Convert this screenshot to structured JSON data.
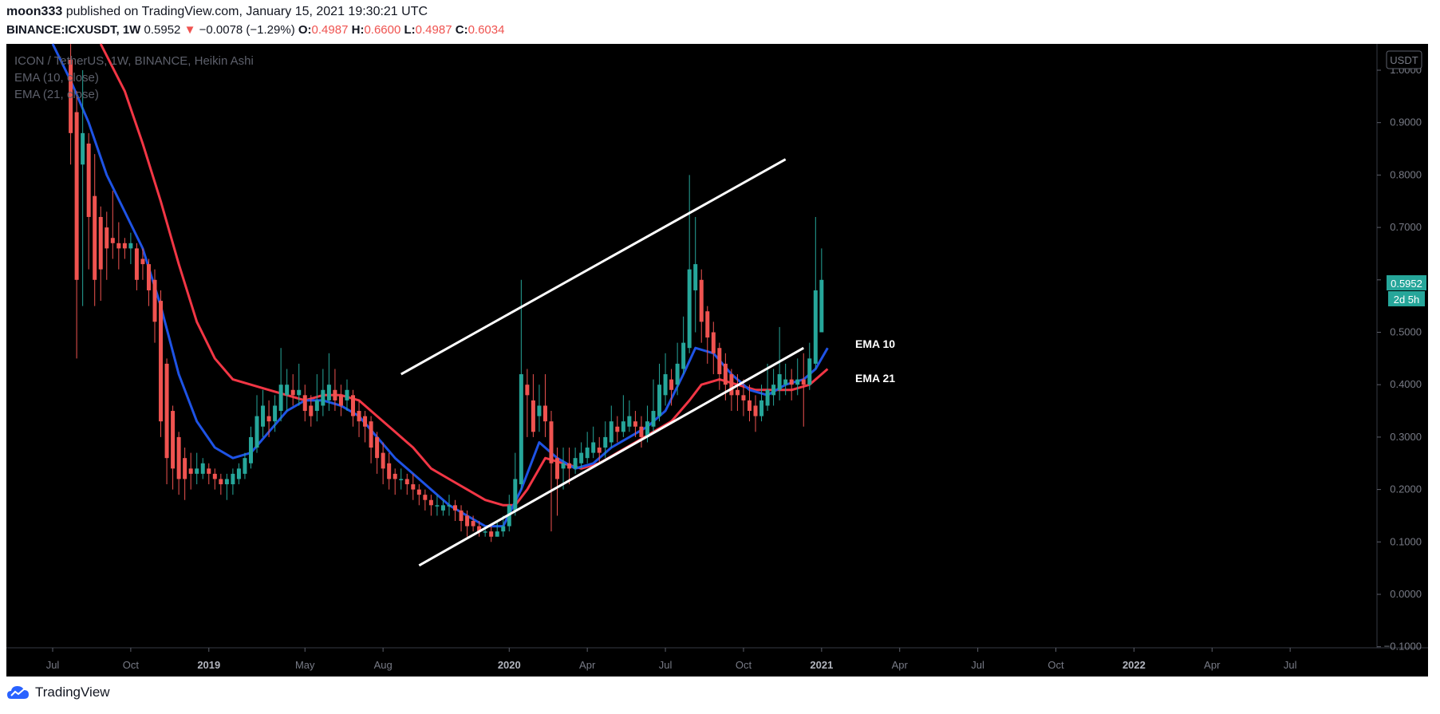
{
  "header": {
    "author": "moon333",
    "published": "published on TradingView.com, January 15, 2021 19:30:21 UTC",
    "symbol": "BINANCE:ICXUSDT, 1W",
    "last": "0.5952",
    "change": "−0.0078 (−1.29%)",
    "o_label": "O:",
    "o": "0.4987",
    "h_label": "H:",
    "h": "0.6600",
    "l_label": "L:",
    "l": "0.4987",
    "c_label": "C:",
    "c": "0.6034"
  },
  "legend": {
    "title": "ICON / TetherUS, 1W, BINANCE, Heikin Ashi",
    "ema10": "EMA (10, close)",
    "ema21": "EMA (21, close)"
  },
  "annotations": {
    "ema10": "EMA 10",
    "ema21": "EMA 21"
  },
  "price_axis": {
    "unit": "USDT",
    "last_price": "0.5952",
    "countdown": "2d 5h"
  },
  "footer": {
    "brand": "TradingView"
  },
  "colors": {
    "up": "#26a69a",
    "down": "#ef5350",
    "ema10": "#1e53e5",
    "ema21": "#f23645",
    "background": "#000000",
    "channel": "#ffffff"
  },
  "chart_data": {
    "type": "candlestick",
    "ylim": [
      -0.1,
      1.0
    ],
    "yticks": [
      "1.0000",
      "0.9000",
      "0.8000",
      "0.7000",
      "0.6000",
      "0.5000",
      "0.4000",
      "0.3000",
      "0.2000",
      "0.1000",
      "0.0000",
      "−0.1000"
    ],
    "x_ticks": [
      "Jul",
      "Oct",
      "2019",
      "May",
      "Aug",
      "2020",
      "Apr",
      "Jul",
      "Oct",
      "2021",
      "Apr",
      "Jul",
      "Oct",
      "2022",
      "Apr",
      "Jul"
    ],
    "x_tick_weeks": [
      0,
      13,
      26,
      42,
      55,
      76,
      89,
      102,
      115,
      128,
      141,
      154,
      167,
      180,
      193,
      206
    ],
    "candles": [
      {
        "w": 3,
        "o": 1.02,
        "c": 0.88,
        "h": 1.05,
        "l": 0.82
      },
      {
        "w": 4,
        "o": 0.92,
        "c": 0.6,
        "h": 0.96,
        "l": 0.45
      },
      {
        "w": 5,
        "o": 0.82,
        "c": 0.88,
        "h": 1.0,
        "l": 0.55
      },
      {
        "w": 6,
        "o": 0.86,
        "c": 0.72,
        "h": 0.88,
        "l": 0.62
      },
      {
        "w": 7,
        "o": 0.76,
        "c": 0.6,
        "h": 0.84,
        "l": 0.55
      },
      {
        "w": 8,
        "o": 0.72,
        "c": 0.62,
        "h": 0.74,
        "l": 0.56
      },
      {
        "w": 9,
        "o": 0.7,
        "c": 0.66,
        "h": 0.73,
        "l": 0.6
      },
      {
        "w": 10,
        "o": 0.68,
        "c": 0.67,
        "h": 0.77,
        "l": 0.64
      },
      {
        "w": 11,
        "o": 0.67,
        "c": 0.66,
        "h": 0.71,
        "l": 0.62
      },
      {
        "w": 12,
        "o": 0.67,
        "c": 0.66,
        "h": 0.68,
        "l": 0.64
      },
      {
        "w": 13,
        "o": 0.66,
        "c": 0.67,
        "h": 0.69,
        "l": 0.63
      },
      {
        "w": 14,
        "o": 0.66,
        "c": 0.6,
        "h": 0.67,
        "l": 0.58
      },
      {
        "w": 15,
        "o": 0.64,
        "c": 0.63,
        "h": 0.66,
        "l": 0.6
      },
      {
        "w": 16,
        "o": 0.63,
        "c": 0.58,
        "h": 0.64,
        "l": 0.55
      },
      {
        "w": 17,
        "o": 0.6,
        "c": 0.52,
        "h": 0.62,
        "l": 0.48
      },
      {
        "w": 18,
        "o": 0.56,
        "c": 0.33,
        "h": 0.58,
        "l": 0.3
      },
      {
        "w": 19,
        "o": 0.44,
        "c": 0.26,
        "h": 0.45,
        "l": 0.21
      },
      {
        "w": 20,
        "o": 0.35,
        "c": 0.24,
        "h": 0.36,
        "l": 0.2
      },
      {
        "w": 21,
        "o": 0.3,
        "c": 0.22,
        "h": 0.31,
        "l": 0.19
      },
      {
        "w": 22,
        "o": 0.26,
        "c": 0.22,
        "h": 0.28,
        "l": 0.18
      },
      {
        "w": 23,
        "o": 0.24,
        "c": 0.23,
        "h": 0.27,
        "l": 0.2
      },
      {
        "w": 24,
        "o": 0.23,
        "c": 0.24,
        "h": 0.27,
        "l": 0.21
      },
      {
        "w": 25,
        "o": 0.23,
        "c": 0.25,
        "h": 0.26,
        "l": 0.22
      },
      {
        "w": 26,
        "o": 0.24,
        "c": 0.23,
        "h": 0.25,
        "l": 0.21
      },
      {
        "w": 27,
        "o": 0.23,
        "c": 0.22,
        "h": 0.24,
        "l": 0.2
      },
      {
        "w": 28,
        "o": 0.22,
        "c": 0.21,
        "h": 0.23,
        "l": 0.19
      },
      {
        "w": 29,
        "o": 0.21,
        "c": 0.22,
        "h": 0.23,
        "l": 0.18
      },
      {
        "w": 30,
        "o": 0.21,
        "c": 0.23,
        "h": 0.24,
        "l": 0.19
      },
      {
        "w": 31,
        "o": 0.22,
        "c": 0.24,
        "h": 0.25,
        "l": 0.21
      },
      {
        "w": 32,
        "o": 0.23,
        "c": 0.26,
        "h": 0.27,
        "l": 0.22
      },
      {
        "w": 33,
        "o": 0.25,
        "c": 0.3,
        "h": 0.32,
        "l": 0.24
      },
      {
        "w": 34,
        "o": 0.28,
        "c": 0.34,
        "h": 0.38,
        "l": 0.27
      },
      {
        "w": 35,
        "o": 0.32,
        "c": 0.36,
        "h": 0.39,
        "l": 0.3
      },
      {
        "w": 36,
        "o": 0.34,
        "c": 0.33,
        "h": 0.37,
        "l": 0.3
      },
      {
        "w": 37,
        "o": 0.33,
        "c": 0.36,
        "h": 0.38,
        "l": 0.31
      },
      {
        "w": 38,
        "o": 0.35,
        "c": 0.4,
        "h": 0.47,
        "l": 0.33
      },
      {
        "w": 39,
        "o": 0.38,
        "c": 0.4,
        "h": 0.43,
        "l": 0.35
      },
      {
        "w": 40,
        "o": 0.39,
        "c": 0.38,
        "h": 0.42,
        "l": 0.36
      },
      {
        "w": 41,
        "o": 0.38,
        "c": 0.39,
        "h": 0.44,
        "l": 0.36
      },
      {
        "w": 42,
        "o": 0.38,
        "c": 0.35,
        "h": 0.4,
        "l": 0.33
      },
      {
        "w": 43,
        "o": 0.36,
        "c": 0.34,
        "h": 0.38,
        "l": 0.32
      },
      {
        "w": 44,
        "o": 0.35,
        "c": 0.37,
        "h": 0.42,
        "l": 0.33
      },
      {
        "w": 45,
        "o": 0.36,
        "c": 0.39,
        "h": 0.43,
        "l": 0.34
      },
      {
        "w": 46,
        "o": 0.37,
        "c": 0.4,
        "h": 0.46,
        "l": 0.35
      },
      {
        "w": 47,
        "o": 0.39,
        "c": 0.37,
        "h": 0.43,
        "l": 0.35
      },
      {
        "w": 48,
        "o": 0.38,
        "c": 0.36,
        "h": 0.4,
        "l": 0.34
      },
      {
        "w": 49,
        "o": 0.37,
        "c": 0.39,
        "h": 0.41,
        "l": 0.35
      },
      {
        "w": 50,
        "o": 0.38,
        "c": 0.34,
        "h": 0.39,
        "l": 0.32
      },
      {
        "w": 51,
        "o": 0.35,
        "c": 0.33,
        "h": 0.37,
        "l": 0.3
      },
      {
        "w": 52,
        "o": 0.34,
        "c": 0.32,
        "h": 0.35,
        "l": 0.29
      },
      {
        "w": 53,
        "o": 0.33,
        "c": 0.28,
        "h": 0.34,
        "l": 0.25
      },
      {
        "w": 54,
        "o": 0.3,
        "c": 0.26,
        "h": 0.31,
        "l": 0.23
      },
      {
        "w": 55,
        "o": 0.27,
        "c": 0.24,
        "h": 0.29,
        "l": 0.21
      },
      {
        "w": 56,
        "o": 0.25,
        "c": 0.22,
        "h": 0.27,
        "l": 0.2
      },
      {
        "w": 57,
        "o": 0.23,
        "c": 0.22,
        "h": 0.24,
        "l": 0.19
      },
      {
        "w": 58,
        "o": 0.22,
        "c": 0.22,
        "h": 0.24,
        "l": 0.2
      },
      {
        "w": 59,
        "o": 0.22,
        "c": 0.21,
        "h": 0.23,
        "l": 0.19
      },
      {
        "w": 60,
        "o": 0.21,
        "c": 0.2,
        "h": 0.23,
        "l": 0.18
      },
      {
        "w": 61,
        "o": 0.2,
        "c": 0.19,
        "h": 0.21,
        "l": 0.17
      },
      {
        "w": 62,
        "o": 0.19,
        "c": 0.18,
        "h": 0.2,
        "l": 0.16
      },
      {
        "w": 63,
        "o": 0.18,
        "c": 0.17,
        "h": 0.19,
        "l": 0.15
      },
      {
        "w": 64,
        "o": 0.17,
        "c": 0.17,
        "h": 0.19,
        "l": 0.15
      },
      {
        "w": 65,
        "o": 0.16,
        "c": 0.17,
        "h": 0.18,
        "l": 0.15
      },
      {
        "w": 66,
        "o": 0.17,
        "c": 0.17,
        "h": 0.19,
        "l": 0.15
      },
      {
        "w": 67,
        "o": 0.17,
        "c": 0.16,
        "h": 0.18,
        "l": 0.14
      },
      {
        "w": 68,
        "o": 0.16,
        "c": 0.14,
        "h": 0.17,
        "l": 0.12
      },
      {
        "w": 69,
        "o": 0.15,
        "c": 0.13,
        "h": 0.16,
        "l": 0.11
      },
      {
        "w": 70,
        "o": 0.14,
        "c": 0.13,
        "h": 0.15,
        "l": 0.12
      },
      {
        "w": 71,
        "o": 0.13,
        "c": 0.12,
        "h": 0.14,
        "l": 0.11
      },
      {
        "w": 72,
        "o": 0.12,
        "c": 0.12,
        "h": 0.13,
        "l": 0.11
      },
      {
        "w": 73,
        "o": 0.12,
        "c": 0.11,
        "h": 0.13,
        "l": 0.1
      },
      {
        "w": 74,
        "o": 0.11,
        "c": 0.12,
        "h": 0.14,
        "l": 0.11
      },
      {
        "w": 75,
        "o": 0.12,
        "c": 0.13,
        "h": 0.15,
        "l": 0.11
      },
      {
        "w": 76,
        "o": 0.13,
        "c": 0.17,
        "h": 0.19,
        "l": 0.12
      },
      {
        "w": 77,
        "o": 0.16,
        "c": 0.22,
        "h": 0.27,
        "l": 0.15
      },
      {
        "w": 78,
        "o": 0.21,
        "c": 0.42,
        "h": 0.6,
        "l": 0.2
      },
      {
        "w": 79,
        "o": 0.4,
        "c": 0.38,
        "h": 0.43,
        "l": 0.3
      },
      {
        "w": 80,
        "o": 0.37,
        "c": 0.31,
        "h": 0.42,
        "l": 0.3
      },
      {
        "w": 81,
        "o": 0.34,
        "c": 0.36,
        "h": 0.4,
        "l": 0.31
      },
      {
        "w": 82,
        "o": 0.36,
        "c": 0.33,
        "h": 0.42,
        "l": 0.3
      },
      {
        "w": 83,
        "o": 0.33,
        "c": 0.25,
        "h": 0.35,
        "l": 0.12
      },
      {
        "w": 84,
        "o": 0.26,
        "c": 0.22,
        "h": 0.28,
        "l": 0.15
      },
      {
        "w": 85,
        "o": 0.24,
        "c": 0.25,
        "h": 0.28,
        "l": 0.2
      },
      {
        "w": 86,
        "o": 0.25,
        "c": 0.24,
        "h": 0.28,
        "l": 0.21
      },
      {
        "w": 87,
        "o": 0.24,
        "c": 0.26,
        "h": 0.28,
        "l": 0.23
      },
      {
        "w": 88,
        "o": 0.25,
        "c": 0.27,
        "h": 0.29,
        "l": 0.24
      },
      {
        "w": 89,
        "o": 0.26,
        "c": 0.28,
        "h": 0.31,
        "l": 0.25
      },
      {
        "w": 90,
        "o": 0.27,
        "c": 0.29,
        "h": 0.32,
        "l": 0.26
      },
      {
        "w": 91,
        "o": 0.28,
        "c": 0.27,
        "h": 0.3,
        "l": 0.25
      },
      {
        "w": 92,
        "o": 0.28,
        "c": 0.3,
        "h": 0.33,
        "l": 0.26
      },
      {
        "w": 93,
        "o": 0.29,
        "c": 0.33,
        "h": 0.36,
        "l": 0.28
      },
      {
        "w": 94,
        "o": 0.32,
        "c": 0.31,
        "h": 0.34,
        "l": 0.29
      },
      {
        "w": 95,
        "o": 0.31,
        "c": 0.33,
        "h": 0.38,
        "l": 0.3
      },
      {
        "w": 96,
        "o": 0.32,
        "c": 0.34,
        "h": 0.37,
        "l": 0.31
      },
      {
        "w": 97,
        "o": 0.33,
        "c": 0.32,
        "h": 0.35,
        "l": 0.3
      },
      {
        "w": 98,
        "o": 0.32,
        "c": 0.3,
        "h": 0.34,
        "l": 0.28
      },
      {
        "w": 99,
        "o": 0.3,
        "c": 0.33,
        "h": 0.36,
        "l": 0.29
      },
      {
        "w": 100,
        "o": 0.32,
        "c": 0.35,
        "h": 0.41,
        "l": 0.31
      },
      {
        "w": 101,
        "o": 0.34,
        "c": 0.4,
        "h": 0.44,
        "l": 0.33
      },
      {
        "w": 102,
        "o": 0.38,
        "c": 0.42,
        "h": 0.46,
        "l": 0.36
      },
      {
        "w": 103,
        "o": 0.41,
        "c": 0.39,
        "h": 0.43,
        "l": 0.36
      },
      {
        "w": 104,
        "o": 0.4,
        "c": 0.44,
        "h": 0.48,
        "l": 0.38
      },
      {
        "w": 105,
        "o": 0.43,
        "c": 0.48,
        "h": 0.53,
        "l": 0.42
      },
      {
        "w": 106,
        "o": 0.47,
        "c": 0.62,
        "h": 0.8,
        "l": 0.46
      },
      {
        "w": 107,
        "o": 0.58,
        "c": 0.63,
        "h": 0.72,
        "l": 0.5
      },
      {
        "w": 108,
        "o": 0.6,
        "c": 0.52,
        "h": 0.62,
        "l": 0.48
      },
      {
        "w": 109,
        "o": 0.54,
        "c": 0.49,
        "h": 0.55,
        "l": 0.44
      },
      {
        "w": 110,
        "o": 0.5,
        "c": 0.46,
        "h": 0.52,
        "l": 0.42
      },
      {
        "w": 111,
        "o": 0.47,
        "c": 0.42,
        "h": 0.48,
        "l": 0.39
      },
      {
        "w": 112,
        "o": 0.44,
        "c": 0.4,
        "h": 0.46,
        "l": 0.37
      },
      {
        "w": 113,
        "o": 0.42,
        "c": 0.38,
        "h": 0.43,
        "l": 0.35
      },
      {
        "w": 114,
        "o": 0.39,
        "c": 0.38,
        "h": 0.42,
        "l": 0.35
      },
      {
        "w": 115,
        "o": 0.38,
        "c": 0.37,
        "h": 0.41,
        "l": 0.34
      },
      {
        "w": 116,
        "o": 0.37,
        "c": 0.35,
        "h": 0.4,
        "l": 0.33
      },
      {
        "w": 117,
        "o": 0.36,
        "c": 0.34,
        "h": 0.38,
        "l": 0.31
      },
      {
        "w": 118,
        "o": 0.34,
        "c": 0.37,
        "h": 0.4,
        "l": 0.33
      },
      {
        "w": 119,
        "o": 0.36,
        "c": 0.39,
        "h": 0.44,
        "l": 0.35
      },
      {
        "w": 120,
        "o": 0.38,
        "c": 0.4,
        "h": 0.43,
        "l": 0.36
      },
      {
        "w": 121,
        "o": 0.39,
        "c": 0.42,
        "h": 0.51,
        "l": 0.37
      },
      {
        "w": 122,
        "o": 0.4,
        "c": 0.41,
        "h": 0.44,
        "l": 0.38
      },
      {
        "w": 123,
        "o": 0.41,
        "c": 0.4,
        "h": 0.43,
        "l": 0.37
      },
      {
        "w": 124,
        "o": 0.4,
        "c": 0.41,
        "h": 0.45,
        "l": 0.38
      },
      {
        "w": 125,
        "o": 0.41,
        "c": 0.4,
        "h": 0.46,
        "l": 0.32
      },
      {
        "w": 126,
        "o": 0.4,
        "c": 0.45,
        "h": 0.48,
        "l": 0.39
      },
      {
        "w": 127,
        "o": 0.44,
        "c": 0.58,
        "h": 0.72,
        "l": 0.43
      },
      {
        "w": 128,
        "o": 0.5,
        "c": 0.6,
        "h": 0.66,
        "l": 0.5
      }
    ],
    "ema10": [
      [
        0,
        1.08
      ],
      [
        3,
        0.98
      ],
      [
        6,
        0.9
      ],
      [
        9,
        0.8
      ],
      [
        12,
        0.73
      ],
      [
        15,
        0.66
      ],
      [
        18,
        0.55
      ],
      [
        21,
        0.42
      ],
      [
        24,
        0.33
      ],
      [
        27,
        0.28
      ],
      [
        30,
        0.26
      ],
      [
        33,
        0.27
      ],
      [
        36,
        0.31
      ],
      [
        39,
        0.35
      ],
      [
        42,
        0.37
      ],
      [
        45,
        0.37
      ],
      [
        48,
        0.36
      ],
      [
        51,
        0.34
      ],
      [
        54,
        0.3
      ],
      [
        57,
        0.26
      ],
      [
        60,
        0.23
      ],
      [
        63,
        0.2
      ],
      [
        66,
        0.17
      ],
      [
        69,
        0.15
      ],
      [
        72,
        0.13
      ],
      [
        75,
        0.13
      ],
      [
        78,
        0.2
      ],
      [
        81,
        0.29
      ],
      [
        84,
        0.26
      ],
      [
        87,
        0.24
      ],
      [
        90,
        0.25
      ],
      [
        93,
        0.28
      ],
      [
        96,
        0.3
      ],
      [
        99,
        0.32
      ],
      [
        102,
        0.35
      ],
      [
        105,
        0.42
      ],
      [
        107,
        0.47
      ],
      [
        110,
        0.46
      ],
      [
        113,
        0.42
      ],
      [
        116,
        0.39
      ],
      [
        119,
        0.38
      ],
      [
        122,
        0.4
      ],
      [
        125,
        0.41
      ],
      [
        127,
        0.43
      ],
      [
        129,
        0.47
      ]
    ],
    "ema21": [
      [
        8,
        1.08
      ],
      [
        12,
        0.96
      ],
      [
        15,
        0.86
      ],
      [
        18,
        0.75
      ],
      [
        21,
        0.63
      ],
      [
        24,
        0.52
      ],
      [
        27,
        0.45
      ],
      [
        30,
        0.41
      ],
      [
        33,
        0.4
      ],
      [
        36,
        0.39
      ],
      [
        39,
        0.38
      ],
      [
        42,
        0.37
      ],
      [
        45,
        0.38
      ],
      [
        48,
        0.38
      ],
      [
        51,
        0.37
      ],
      [
        54,
        0.34
      ],
      [
        57,
        0.31
      ],
      [
        60,
        0.28
      ],
      [
        63,
        0.24
      ],
      [
        66,
        0.22
      ],
      [
        69,
        0.2
      ],
      [
        72,
        0.18
      ],
      [
        75,
        0.17
      ],
      [
        77,
        0.17
      ],
      [
        79,
        0.2
      ],
      [
        82,
        0.26
      ],
      [
        85,
        0.25
      ],
      [
        88,
        0.24
      ],
      [
        91,
        0.25
      ],
      [
        94,
        0.27
      ],
      [
        97,
        0.29
      ],
      [
        100,
        0.31
      ],
      [
        103,
        0.33
      ],
      [
        106,
        0.37
      ],
      [
        108,
        0.4
      ],
      [
        111,
        0.41
      ],
      [
        114,
        0.4
      ],
      [
        117,
        0.39
      ],
      [
        120,
        0.39
      ],
      [
        123,
        0.39
      ],
      [
        126,
        0.4
      ],
      [
        129,
        0.43
      ]
    ],
    "channel": [
      {
        "from": [
          58,
          0.42
        ],
        "to": [
          122,
          0.83
        ]
      },
      {
        "from": [
          61,
          0.055
        ],
        "to": [
          125,
          0.47
        ]
      }
    ]
  }
}
